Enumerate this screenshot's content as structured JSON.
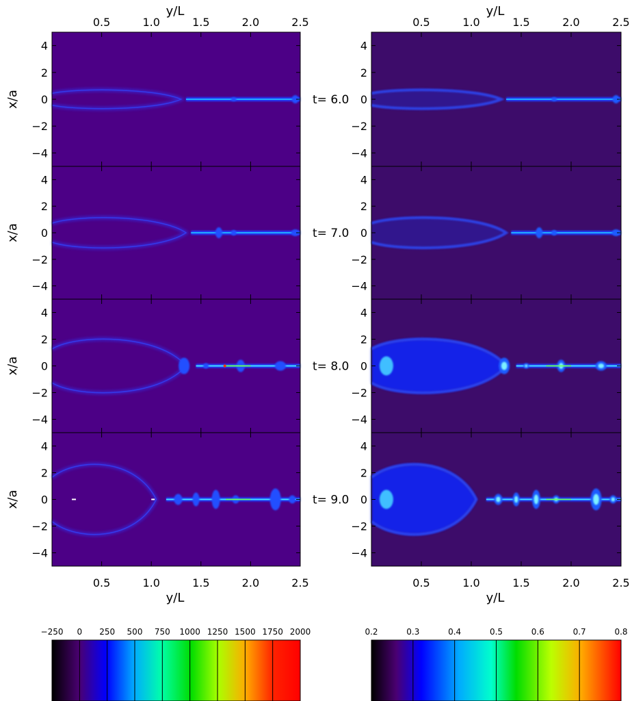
{
  "figure": {
    "x_axis_label": "y/L",
    "y_axis_label": "x/a",
    "x_ticks": [
      "0.5",
      "1.0",
      "1.5",
      "2.0",
      "2.5"
    ],
    "y_ticks": [
      "4",
      "2",
      "0",
      "−2",
      "−4"
    ],
    "time_labels": [
      "t=  6.0",
      "t=  7.0",
      "t=  8.0",
      "t=  9.0"
    ],
    "colorbar_left": {
      "ticks": [
        "−250",
        "0",
        "250",
        "500",
        "750",
        "1000",
        "1250",
        "1500",
        "1750",
        "2000"
      ]
    },
    "colorbar_right": {
      "ticks": [
        "0.2",
        "0.3",
        "0.4",
        "0.5",
        "0.6",
        "0.7",
        "0.8"
      ]
    }
  },
  "chart_data": [
    {
      "type": "heatmap",
      "description_of_content": "left column: current density maps at four times",
      "xlabel": "y/L",
      "ylabel": "x/a",
      "xlim": [
        0,
        2.5
      ],
      "ylim": [
        -5,
        5
      ],
      "panels_at_t": [
        6.0,
        7.0,
        8.0,
        9.0
      ],
      "colorbar_range": [
        -250,
        2000
      ]
    },
    {
      "type": "heatmap",
      "xlabel": "y/L",
      "ylabel": "x/a",
      "xlim": [
        0,
        2.5
      ],
      "ylim": [
        -5,
        5
      ],
      "panels_at_t": [
        6.0,
        7.0,
        8.0,
        9.0
      ],
      "colorbar_range": [
        0.2,
        0.8
      ]
    }
  ]
}
